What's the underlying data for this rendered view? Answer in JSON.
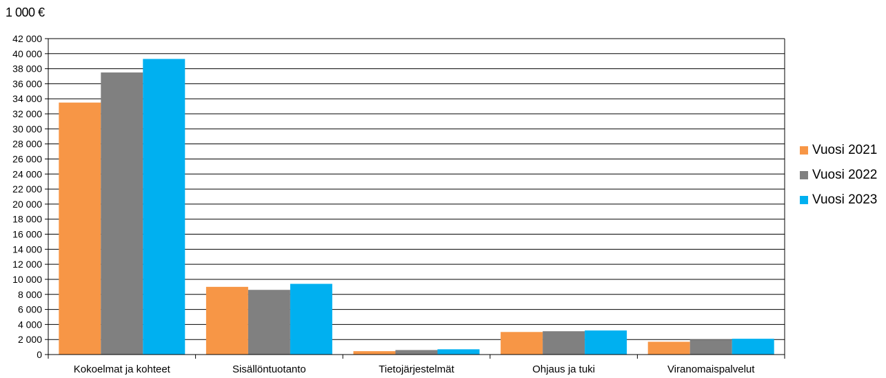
{
  "chart_data": {
    "type": "bar",
    "title": "1 000 €",
    "categories": [
      "Kokoelmat ja kohteet",
      "Sisällöntuotanto",
      "Tietojärjestelmät",
      "Ohjaus ja tuki",
      "Viranomaispalvelut"
    ],
    "series": [
      {
        "name": "Vuosi 2021",
        "color": "#F79646",
        "values": [
          33500,
          9000,
          450,
          3000,
          1700
        ]
      },
      {
        "name": "Vuosi 2022",
        "color": "#808080",
        "values": [
          37500,
          8600,
          600,
          3100,
          2000
        ]
      },
      {
        "name": "Vuosi 2023",
        "color": "#00B0F0",
        "values": [
          39300,
          9400,
          700,
          3200,
          2100
        ]
      }
    ],
    "ylim": [
      0,
      42000
    ],
    "ytick_step": 2000,
    "yticks": [
      "0",
      "2 000",
      "4 000",
      "6 000",
      "8 000",
      "10 000",
      "12 000",
      "14 000",
      "16 000",
      "18 000",
      "20 000",
      "22 000",
      "24 000",
      "26 000",
      "28 000",
      "30 000",
      "32 000",
      "34 000",
      "36 000",
      "38 000",
      "40 000",
      "42 000"
    ],
    "grid": true,
    "legend_position": "right"
  }
}
